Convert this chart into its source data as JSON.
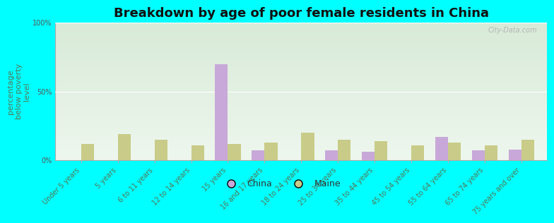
{
  "title": "Breakdown by age of poor female residents in China",
  "ylabel": "percentage\nbelow poverty\nlevel",
  "background_color": "#00ffff",
  "plot_bg_top": "#d8ead8",
  "plot_bg_bottom": "#eef7ee",
  "categories": [
    "Under 5 years",
    "5 years",
    "6 to 11 years",
    "12 to 14 years",
    "15 years",
    "16 and 17 years",
    "18 to 24 years",
    "25 to 34 years",
    "35 to 44 years",
    "45 to 54 years",
    "55 to 64 years",
    "65 to 74 years",
    "75 years and over"
  ],
  "china_values": [
    0,
    0,
    0,
    0,
    70.0,
    7.0,
    0,
    7.0,
    6.0,
    0,
    17.0,
    7.0,
    8.0
  ],
  "maine_values": [
    12.0,
    19.0,
    15.0,
    11.0,
    12.0,
    13.0,
    20.0,
    15.0,
    14.0,
    11.0,
    13.0,
    11.0,
    15.0
  ],
  "china_color": "#c8a8d8",
  "maine_color": "#c8cc88",
  "ylim": [
    0,
    100
  ],
  "ytick_labels": [
    "0%",
    "50%",
    "100%"
  ],
  "ytick_vals": [
    0,
    50,
    100
  ],
  "bar_width": 0.35,
  "title_fontsize": 13,
  "axis_label_fontsize": 8,
  "tick_fontsize": 7,
  "legend_fontsize": 9,
  "watermark": "City-Data.com",
  "xtick_color": "#557755",
  "ytick_color": "#555555",
  "ylabel_color": "#557755",
  "spine_color": "#aaaaaa"
}
